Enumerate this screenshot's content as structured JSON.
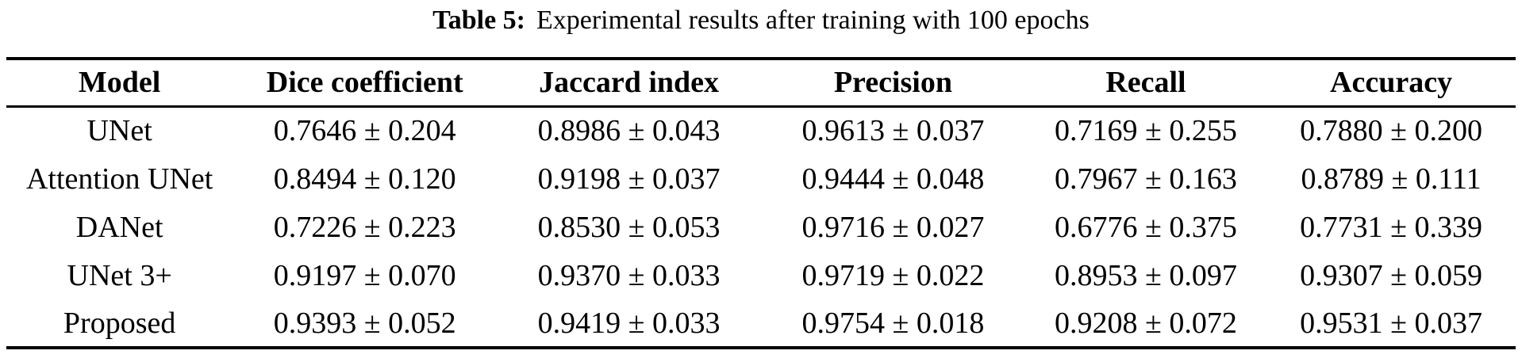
{
  "caption": {
    "label": "Table 5:",
    "text": "Experimental results after training with 100 epochs"
  },
  "colors": {
    "text": "#000000",
    "background": "#ffffff",
    "rule": "#000000"
  },
  "table": {
    "columns": [
      "Model",
      "Dice coefficient",
      "Jaccard index",
      "Precision",
      "Recall",
      "Accuracy"
    ],
    "rows": [
      [
        "UNet",
        "0.7646 ± 0.204",
        "0.8986 ± 0.043",
        "0.9613 ± 0.037",
        "0.7169 ± 0.255",
        "0.7880 ± 0.200"
      ],
      [
        "Attention UNet",
        "0.8494 ± 0.120",
        "0.9198 ± 0.037",
        "0.9444 ± 0.048",
        "0.7967 ± 0.163",
        "0.8789 ± 0.111"
      ],
      [
        "DANet",
        "0.7226 ± 0.223",
        "0.8530 ± 0.053",
        "0.9716 ± 0.027",
        "0.6776 ± 0.375",
        "0.7731 ± 0.339"
      ],
      [
        "UNet 3+",
        "0.9197 ± 0.070",
        "0.9370 ± 0.033",
        "0.9719 ± 0.022",
        "0.8953 ± 0.097",
        "0.9307 ± 0.059"
      ],
      [
        "Proposed",
        "0.9393 ± 0.052",
        "0.9419 ± 0.033",
        "0.9754 ± 0.018",
        "0.9208 ± 0.072",
        "0.9531 ± 0.037"
      ]
    ]
  }
}
